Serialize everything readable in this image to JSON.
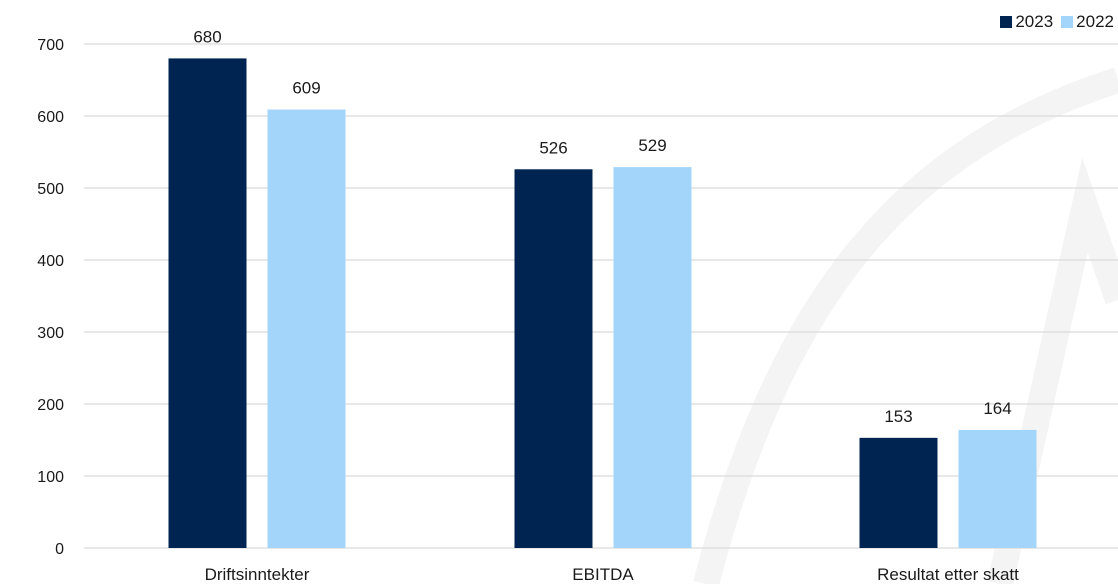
{
  "chart_data": {
    "type": "bar",
    "categories": [
      "Driftsinntekter",
      "EBITDA",
      "Resultat etter skatt"
    ],
    "series": [
      {
        "name": "2023",
        "values": [
          680,
          526,
          153
        ],
        "color": "#002451"
      },
      {
        "name": "2022",
        "values": [
          609,
          529,
          164
        ],
        "color": "#a3d5fa"
      }
    ],
    "ylim": [
      0,
      700
    ],
    "yticks": [
      0,
      100,
      200,
      300,
      400,
      500,
      600,
      700
    ],
    "title": "",
    "xlabel": "",
    "ylabel": "",
    "grid": true,
    "legend_position": "top-right",
    "gridline_color": "#d9d9d9",
    "watermark_color": "#f4f4f4"
  }
}
